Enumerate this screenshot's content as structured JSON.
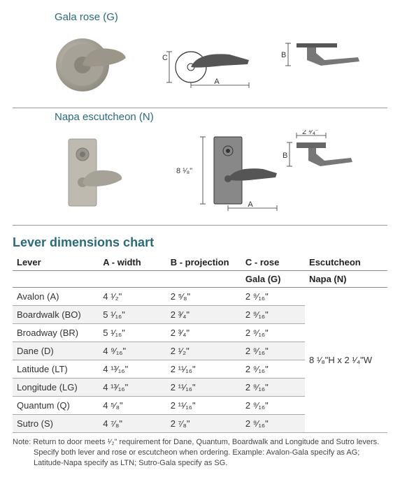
{
  "sections": {
    "gala": {
      "label": "Gala rose (G)"
    },
    "napa": {
      "label": "Napa escutcheon (N)"
    }
  },
  "diagrams": {
    "gala_front": {
      "A": "A",
      "C": "C"
    },
    "gala_side": {
      "B": "B"
    },
    "napa": {
      "height": "8 ¹⁄₈\"",
      "width_top": "2 ¹⁄₄\"",
      "A": "A",
      "B": "B"
    }
  },
  "chart": {
    "title": "Lever dimensions chart",
    "headers": {
      "lever": "Lever",
      "a": "A - width",
      "b": "B - projection",
      "c": "C - rose",
      "esc": "Escutcheon",
      "gala": "Gala (G)",
      "napa": "Napa (N)"
    },
    "rows": [
      {
        "lever": "Avalon (A)",
        "a": "4 ¹⁄₂\"",
        "b": "2 ⁵⁄₈\"",
        "c": "2 ⁹⁄₁₆\""
      },
      {
        "lever": "Boardwalk (BO)",
        "a": "5 ¹⁄₁₆\"",
        "b": "2 ³⁄₄\"",
        "c": "2 ⁹⁄₁₆\""
      },
      {
        "lever": "Broadway (BR)",
        "a": "5 ¹⁄₁₆\"",
        "b": "2 ³⁄₄\"",
        "c": "2 ⁹⁄₁₆\""
      },
      {
        "lever": "Dane (D)",
        "a": "4 ⁹⁄₁₆\"",
        "b": "2 ¹⁄₂\"",
        "c": "2 ⁹⁄₁₆\""
      },
      {
        "lever": "Latitude (LT)",
        "a": "4 ¹³⁄₁₆\"",
        "b": "2 ¹¹⁄₁₆\"",
        "c": "2 ⁹⁄₁₆\""
      },
      {
        "lever": "Longitude (LG)",
        "a": "4 ¹³⁄₁₆\"",
        "b": "2 ¹¹⁄₁₆\"",
        "c": "2 ⁹⁄₁₆\""
      },
      {
        "lever": "Quantum (Q)",
        "a": "4 ⁵⁄₈\"",
        "b": "2 ¹¹⁄₁₆\"",
        "c": "2 ⁹⁄₁₆\""
      },
      {
        "lever": "Sutro (S)",
        "a": "4 ⁷⁄₈\"",
        "b": "2 ⁷⁄₈\"",
        "c": "2 ⁹⁄₁₆\""
      }
    ],
    "escutcheon_value": "8 ¹⁄₈\"H x 2 ¹⁄₄\"W"
  },
  "note": {
    "line1": "Note: Return to door meets ¹⁄₂\" requirement for Dane, Quantum, Boardwalk and Longitude and Sutro levers.",
    "line2": "Specify both lever and rose or escutcheon when ordering. Example: Avalon-Gala specify as AG; Latitude-Napa specify as LTN; Sutro-Gala specify as SG."
  },
  "colors": {
    "heading": "#2a6a7a",
    "metal": "#a7a298",
    "metal_dark": "#8b867c",
    "line": "#333333"
  }
}
